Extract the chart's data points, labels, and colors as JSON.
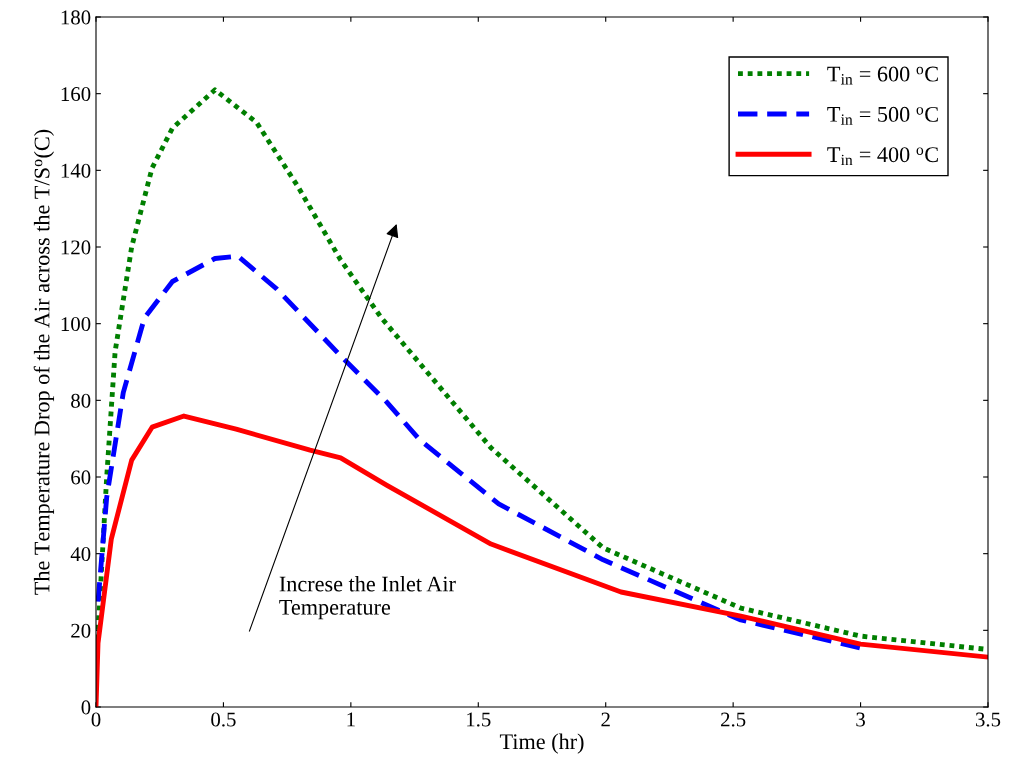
{
  "chart_data": {
    "type": "line",
    "xlabel": "Time (hr)",
    "ylabel": "The Temperature Drop of the Air across the T/S$^{o}$(C)",
    "xlim": [
      0,
      3.5
    ],
    "ylim": [
      0,
      180
    ],
    "xticks": [
      0,
      0.5,
      1,
      1.5,
      2,
      2.5,
      3,
      3.5
    ],
    "yticks": [
      0,
      20,
      40,
      60,
      80,
      100,
      120,
      140,
      160,
      180
    ],
    "grid": false,
    "legend": "top right",
    "marker": "none",
    "annotations": [
      "Increse the Inlet Air\nTemperature"
    ],
    "series": [
      {
        "name": "T$_{in}$ = 600 $^{o}$C",
        "color": "#007f00",
        "line_style": "dotted",
        "x": [
          0,
          0.042,
          0.075,
          0.14,
          0.22,
          0.3,
          0.467,
          0.63,
          0.79,
          0.96,
          1.12,
          1.55,
          1.99,
          2.53,
          3.0,
          3.5
        ],
        "values": [
          10,
          60,
          92.7,
          120,
          140.6,
          151,
          161,
          152.5,
          136,
          116.6,
          101.5,
          67.6,
          41.5,
          25.8,
          18.5,
          15
        ]
      },
      {
        "name": "T$_{in}$ = 500 $^{o}$C",
        "color": "#0000ff",
        "line_style": "dashed",
        "x": [
          0.008,
          0.042,
          0.107,
          0.19,
          0.3,
          0.467,
          0.557,
          0.71,
          0.96,
          1.14,
          1.27,
          1.58,
          1.99,
          2.53,
          3.0
        ],
        "values": [
          27.5,
          54.7,
          82,
          101.5,
          111,
          117,
          117.6,
          109,
          91.6,
          79.6,
          69.7,
          53,
          38.4,
          22.7,
          15.4
        ]
      },
      {
        "name": "T$_{in}$ = 400 $^{o}$C",
        "color": "#ff0000",
        "line_style": "solid",
        "x": [
          0,
          0.008,
          0.06,
          0.14,
          0.22,
          0.345,
          0.55,
          0.84,
          0.96,
          1.14,
          1.55,
          2.06,
          2.53,
          3.0,
          3.5
        ],
        "values": [
          0,
          16.7,
          43.8,
          64.4,
          73,
          75.9,
          72.5,
          67,
          65,
          57.9,
          42.5,
          30,
          23.7,
          16.4,
          13
        ]
      }
    ]
  }
}
